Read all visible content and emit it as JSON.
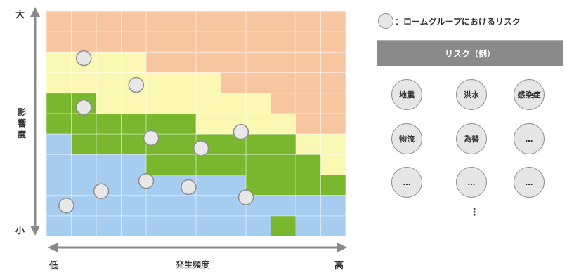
{
  "axes": {
    "y_top": "大",
    "y_bottom": "小",
    "y_title": [
      "影",
      "響",
      "度"
    ],
    "x_left": "低",
    "x_right": "高",
    "x_title": "発生頻度"
  },
  "colors": {
    "orange": "#f7c6a1",
    "yellow": "#fbf8b4",
    "green": "#79b82e",
    "blue": "#a6cdf0",
    "grid_line": "#d8d8d8",
    "arrow": "#8a8a8a",
    "marker_fill": "#e8e8e8",
    "marker_stroke": "#8c8c8c"
  },
  "zones": {
    "columns": 12,
    "rows": 11,
    "yellow_top": [
      2,
      2,
      2,
      2,
      3,
      3,
      3,
      4,
      4,
      5,
      6,
      6
    ],
    "green_top": [
      4,
      4,
      5,
      5,
      5,
      5,
      6,
      6,
      6,
      6,
      7,
      8
    ],
    "blue_top": [
      6,
      7,
      7,
      7,
      8,
      8,
      8,
      8,
      9,
      9,
      9,
      9
    ],
    "blue_bottom_cap": [
      11,
      11,
      11,
      11,
      11,
      11,
      11,
      11,
      11,
      10,
      11,
      11
    ]
  },
  "markers": [
    {
      "x": 1.5,
      "y": 2.3
    },
    {
      "x": 3.6,
      "y": 3.6
    },
    {
      "x": 1.5,
      "y": 4.7
    },
    {
      "x": 4.2,
      "y": 6.2
    },
    {
      "x": 6.2,
      "y": 6.7
    },
    {
      "x": 7.8,
      "y": 5.9
    },
    {
      "x": 2.2,
      "y": 8.8
    },
    {
      "x": 4.0,
      "y": 8.3
    },
    {
      "x": 5.7,
      "y": 8.6
    },
    {
      "x": 8.0,
      "y": 9.1
    },
    {
      "x": 0.8,
      "y": 9.5
    }
  ],
  "legend": {
    "text": "：ロームグループにおけるリスク"
  },
  "panel": {
    "header": "リスク（例）",
    "items": [
      "地震",
      "洪水",
      "感染症",
      "物流",
      "為替",
      "…",
      "…",
      "…",
      "…"
    ],
    "more": "⋮"
  }
}
